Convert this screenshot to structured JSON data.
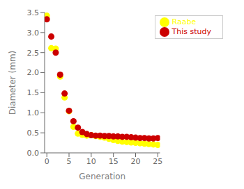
{
  "chart_data": {
    "type": "scatter",
    "xlabel": "Generation",
    "ylabel": "Diameter (mm)",
    "x": [
      0,
      1,
      2,
      3,
      4,
      5,
      6,
      7,
      8,
      9,
      10,
      11,
      12,
      13,
      14,
      15,
      16,
      17,
      18,
      19,
      20,
      21,
      22,
      23,
      24,
      25
    ],
    "series": [
      {
        "name": "Raabe",
        "color": "#ffff00",
        "values": [
          3.42,
          2.61,
          2.6,
          1.9,
          1.38,
          1.04,
          0.65,
          0.48,
          0.45,
          0.43,
          0.44,
          0.42,
          0.4,
          0.38,
          0.35,
          0.32,
          0.3,
          0.28,
          0.27,
          0.26,
          0.25,
          0.24,
          0.23,
          0.22,
          0.21,
          0.2
        ]
      },
      {
        "name": "This study",
        "color": "#cc0000",
        "values": [
          3.33,
          2.9,
          2.5,
          1.95,
          1.48,
          1.05,
          0.79,
          0.63,
          0.52,
          0.47,
          0.44,
          0.43,
          0.43,
          0.42,
          0.42,
          0.41,
          0.41,
          0.4,
          0.4,
          0.39,
          0.38,
          0.37,
          0.37,
          0.36,
          0.36,
          0.37
        ]
      }
    ],
    "xlim": [
      -0.5,
      25.5
    ],
    "ylim": [
      0.0,
      3.5
    ],
    "xticks": [
      0,
      5,
      10,
      15,
      20,
      25
    ],
    "yticks": [
      {
        "value": 0,
        "label": "0.0"
      },
      0.5,
      {
        "value": 1,
        "label": "1.0"
      },
      1.5,
      {
        "value": 2,
        "label": "2.0"
      },
      2.5,
      {
        "value": 3,
        "label": "3.0"
      },
      3.5
    ],
    "marker": "circle",
    "legend": "upper right",
    "grid": false
  }
}
